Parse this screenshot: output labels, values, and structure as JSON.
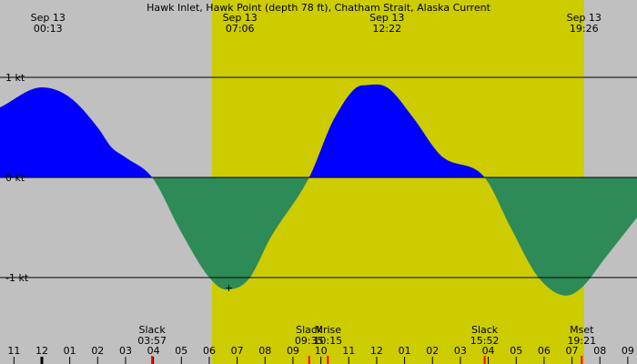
{
  "chart_data": {
    "type": "area",
    "title": "Hawk Inlet, Hawk Point (depth 78 ft), Chatham Strait, Alaska Current",
    "x_unit": "hours",
    "xlim": [
      10.5,
      33.33
    ],
    "ylim": [
      -1.6,
      1.65
    ],
    "y_ticks": [
      {
        "value": 1,
        "label": "1 kt"
      },
      {
        "value": 0,
        "label": "0 kt"
      },
      {
        "value": -1,
        "label": "-1 kt"
      }
    ],
    "hour_ticks": [
      "11",
      "12",
      "01",
      "02",
      "03",
      "04",
      "05",
      "06",
      "07",
      "08",
      "09",
      "10",
      "11",
      "12",
      "01",
      "02",
      "03",
      "04",
      "05",
      "06",
      "07",
      "08",
      "09"
    ],
    "daylight": {
      "start": 18.1,
      "end": 31.43
    },
    "colors": {
      "night": "#c0c0c0",
      "day": "#cccc00",
      "flood": "#0000ff",
      "ebb": "#2e8b57",
      "event_marker": "#ff0000"
    },
    "series": [
      {
        "x": [
          10.5,
          12.0,
          13.0,
          14.0,
          14.5,
          15.0,
          15.95,
          17.0,
          18.0,
          18.6,
          19.4,
          20.2,
          21.58,
          22.5,
          23.5,
          24.37,
          25.3,
          26.3,
          27.87,
          28.8,
          29.8,
          30.8,
          31.35,
          32.2,
          33.33
        ],
        "y": [
          0.7,
          0.9,
          0.8,
          0.5,
          0.3,
          0.2,
          0.0,
          -0.55,
          -1.0,
          -1.12,
          -1.02,
          -0.6,
          0.0,
          0.6,
          0.92,
          0.9,
          0.6,
          0.22,
          0.0,
          -0.5,
          -1.0,
          -1.18,
          -1.1,
          -0.8,
          -0.4
        ]
      }
    ],
    "top_labels": [
      {
        "date": "Sep 13",
        "time": "00:13",
        "x": 12.22
      },
      {
        "date": "Sep 13",
        "time": "07:06",
        "x": 19.1
      },
      {
        "date": "Sep 13",
        "time": "12:22",
        "x": 24.37
      },
      {
        "date": "Sep 13",
        "time": "19:26",
        "x": 31.43
      }
    ],
    "events": [
      {
        "name": "Slack",
        "time": "03:57",
        "x": 15.95
      },
      {
        "name": "Slack",
        "time": "09:35",
        "x": 21.58
      },
      {
        "name": "Mrise",
        "time": "10:15",
        "x": 22.25
      },
      {
        "name": "Slack",
        "time": "15:52",
        "x": 27.87
      },
      {
        "name": "Mset",
        "time": "19:21",
        "x": 31.35
      }
    ],
    "marker": {
      "symbol": "+",
      "x": 18.7,
      "y": -1.1
    }
  }
}
